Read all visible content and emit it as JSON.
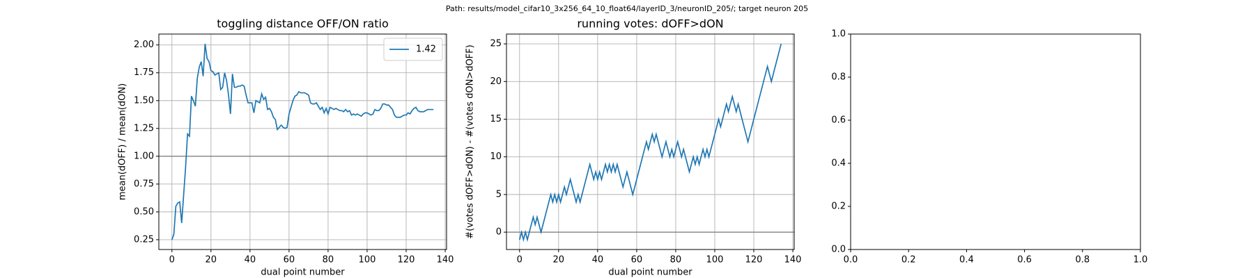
{
  "suptitle": "Path: results/model_cifar10_3x256_64_10_float64/layerID_3/neuronID_205/; target neuron 205",
  "chart_data": [
    {
      "type": "line",
      "title": "toggling distance OFF/ON ratio",
      "xlabel": "dual point number",
      "ylabel": "mean(dOFF) / mean(dON)",
      "x": [
        0,
        1,
        2,
        3,
        4,
        5,
        6,
        7,
        8,
        9,
        10,
        11,
        12,
        13,
        14,
        15,
        16,
        17,
        18,
        19,
        20,
        21,
        22,
        23,
        24,
        25,
        26,
        27,
        28,
        29,
        30,
        31,
        32,
        33,
        34,
        35,
        36,
        37,
        38,
        39,
        40,
        41,
        42,
        43,
        44,
        45,
        46,
        47,
        48,
        49,
        50,
        51,
        52,
        53,
        54,
        55,
        56,
        57,
        58,
        59,
        60,
        61,
        62,
        63,
        64,
        65,
        66,
        67,
        68,
        69,
        70,
        71,
        72,
        73,
        74,
        75,
        76,
        77,
        78,
        79,
        80,
        81,
        82,
        83,
        84,
        85,
        86,
        87,
        88,
        89,
        90,
        91,
        92,
        93,
        94,
        95,
        96,
        97,
        98,
        99,
        100,
        101,
        102,
        103,
        104,
        105,
        106,
        107,
        108,
        109,
        110,
        111,
        112,
        113,
        114,
        115,
        116,
        117,
        118,
        119,
        120,
        121,
        122,
        123,
        124,
        125,
        126,
        127,
        128,
        129,
        130,
        131,
        132,
        133,
        134
      ],
      "series": [
        {
          "name": "1.42",
          "color": "#1f77b4",
          "values": [
            0.25,
            0.3,
            0.55,
            0.58,
            0.59,
            0.4,
            0.65,
            0.9,
            1.2,
            1.18,
            1.54,
            1.5,
            1.45,
            1.7,
            1.8,
            1.85,
            1.72,
            2.01,
            1.88,
            1.85,
            1.77,
            1.76,
            1.73,
            1.74,
            1.75,
            1.6,
            1.62,
            1.75,
            1.68,
            1.55,
            1.38,
            1.74,
            1.62,
            1.62,
            1.63,
            1.63,
            1.64,
            1.63,
            1.55,
            1.48,
            1.48,
            1.48,
            1.39,
            1.5,
            1.49,
            1.48,
            1.56,
            1.51,
            1.53,
            1.42,
            1.43,
            1.4,
            1.35,
            1.33,
            1.24,
            1.26,
            1.28,
            1.26,
            1.25,
            1.26,
            1.38,
            1.44,
            1.5,
            1.54,
            1.55,
            1.58,
            1.57,
            1.57,
            1.57,
            1.56,
            1.55,
            1.48,
            1.47,
            1.47,
            1.48,
            1.45,
            1.42,
            1.44,
            1.39,
            1.43,
            1.38,
            1.44,
            1.43,
            1.42,
            1.43,
            1.42,
            1.41,
            1.41,
            1.4,
            1.42,
            1.4,
            1.41,
            1.37,
            1.38,
            1.37,
            1.38,
            1.37,
            1.36,
            1.38,
            1.39,
            1.39,
            1.38,
            1.37,
            1.38,
            1.42,
            1.41,
            1.41,
            1.43,
            1.47,
            1.47,
            1.46,
            1.46,
            1.44,
            1.42,
            1.37,
            1.35,
            1.35,
            1.35,
            1.36,
            1.37,
            1.37,
            1.39,
            1.38,
            1.41,
            1.43,
            1.44,
            1.41,
            1.4,
            1.4,
            1.4,
            1.41,
            1.42,
            1.42,
            1.42,
            1.42
          ]
        }
      ],
      "hline": {
        "value": 1,
        "color": "#808080"
      },
      "xlim": [
        -6.7,
        140.7
      ],
      "xticks": [
        0,
        20,
        40,
        60,
        80,
        100,
        120,
        140
      ],
      "ylim": [
        0.162,
        2.098
      ],
      "yticks": [
        0.25,
        {
          "value": 0.5,
          "label": "0.50"
        },
        0.75,
        {
          "value": 1,
          "label": "1.00"
        },
        1.25,
        {
          "value": 1.5,
          "label": "1.50"
        },
        1.75,
        {
          "value": 2,
          "label": "2.00"
        }
      ],
      "grid": true,
      "legend": "upper right"
    },
    {
      "type": "line",
      "title": "running votes: dOFF>dON",
      "xlabel": "dual point number",
      "ylabel": "#(votes dOFF>dON) - #(votes dON>dOFF)",
      "x": [
        0,
        1,
        2,
        3,
        4,
        5,
        6,
        7,
        8,
        9,
        10,
        11,
        12,
        13,
        14,
        15,
        16,
        17,
        18,
        19,
        20,
        21,
        22,
        23,
        24,
        25,
        26,
        27,
        28,
        29,
        30,
        31,
        32,
        33,
        34,
        35,
        36,
        37,
        38,
        39,
        40,
        41,
        42,
        43,
        44,
        45,
        46,
        47,
        48,
        49,
        50,
        51,
        52,
        53,
        54,
        55,
        56,
        57,
        58,
        59,
        60,
        61,
        62,
        63,
        64,
        65,
        66,
        67,
        68,
        69,
        70,
        71,
        72,
        73,
        74,
        75,
        76,
        77,
        78,
        79,
        80,
        81,
        82,
        83,
        84,
        85,
        86,
        87,
        88,
        89,
        90,
        91,
        92,
        93,
        94,
        95,
        96,
        97,
        98,
        99,
        100,
        101,
        102,
        103,
        104,
        105,
        106,
        107,
        108,
        109,
        110,
        111,
        112,
        113,
        114,
        115,
        116,
        117,
        118,
        119,
        120,
        121,
        122,
        123,
        124,
        125,
        126,
        127,
        128,
        129,
        130,
        131,
        132,
        133,
        134
      ],
      "series": [
        {
          "color": "#1f77b4",
          "values": [
            -1,
            0,
            -1,
            0,
            -1,
            0,
            1,
            2,
            1,
            2,
            1,
            0,
            1,
            2,
            3,
            4,
            5,
            4,
            5,
            4,
            5,
            4,
            5,
            6,
            5,
            6,
            7,
            6,
            5,
            4,
            5,
            4,
            5,
            6,
            7,
            8,
            9,
            8,
            7,
            8,
            7,
            8,
            7,
            8,
            9,
            8,
            9,
            8,
            9,
            8,
            9,
            8,
            7,
            6,
            7,
            8,
            7,
            6,
            5,
            6,
            7,
            8,
            9,
            10,
            11,
            12,
            11,
            12,
            13,
            12,
            13,
            12,
            11,
            10,
            11,
            12,
            11,
            10,
            11,
            10,
            11,
            12,
            11,
            10,
            11,
            10,
            9,
            8,
            9,
            10,
            9,
            10,
            9,
            10,
            11,
            10,
            11,
            10,
            11,
            12,
            13,
            14,
            15,
            14,
            15,
            16,
            17,
            16,
            17,
            18,
            17,
            16,
            17,
            16,
            15,
            14,
            13,
            12,
            13,
            14,
            15,
            16,
            17,
            18,
            19,
            20,
            21,
            22,
            21,
            20,
            21,
            22,
            23,
            24,
            25
          ]
        }
      ],
      "hline": {
        "value": 0,
        "color": "#808080"
      },
      "xlim": [
        -6.7,
        140.7
      ],
      "xticks": [
        0,
        20,
        40,
        60,
        80,
        100,
        120,
        140
      ],
      "ylim": [
        -2.3,
        26.3
      ],
      "yticks": [
        0,
        5,
        10,
        15,
        20,
        25
      ],
      "grid": true
    },
    {
      "type": "line",
      "series": [],
      "xlim": [
        0,
        1
      ],
      "xticks": [
        {
          "value": 0,
          "label": "0.0"
        },
        0.2,
        0.4,
        0.6,
        0.8,
        {
          "value": 1,
          "label": "1.0"
        }
      ],
      "ylim": [
        0,
        1
      ],
      "yticks": [
        {
          "value": 0,
          "label": "0.0"
        },
        0.2,
        0.4,
        0.6,
        0.8,
        {
          "value": 1,
          "label": "1.0"
        }
      ],
      "grid": false
    }
  ]
}
